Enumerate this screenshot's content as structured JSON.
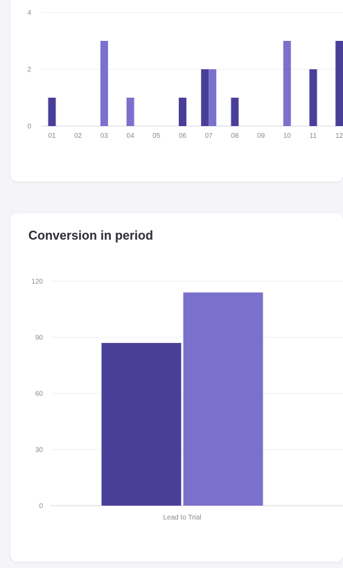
{
  "chart_data": [
    {
      "type": "bar",
      "title": "",
      "categories": [
        "01",
        "02",
        "03",
        "04",
        "05",
        "06",
        "07",
        "08",
        "09",
        "10",
        "11",
        "12"
      ],
      "series": [
        {
          "values": [
            1,
            0,
            0,
            0,
            0,
            1,
            2,
            1,
            0,
            0,
            2,
            3
          ]
        },
        {
          "values": [
            0,
            0,
            3,
            1,
            0,
            0,
            2,
            0,
            0,
            3,
            0,
            0
          ]
        }
      ],
      "ylim": [
        0,
        4
      ],
      "yticks": [
        "0",
        "2",
        "4"
      ],
      "grid": true,
      "colors": [
        "#4a3f98",
        "#7b70cc"
      ]
    },
    {
      "type": "bar",
      "title": "Conversion in period",
      "categories": [
        "Lead to Trial"
      ],
      "series": [
        {
          "values": [
            87
          ]
        },
        {
          "values": [
            114
          ]
        }
      ],
      "ylim": [
        0,
        120
      ],
      "yticks": [
        "0",
        "30",
        "60",
        "90",
        "120"
      ],
      "grid": true,
      "colors": [
        "#4a3f98",
        "#7b70cc"
      ]
    }
  ]
}
